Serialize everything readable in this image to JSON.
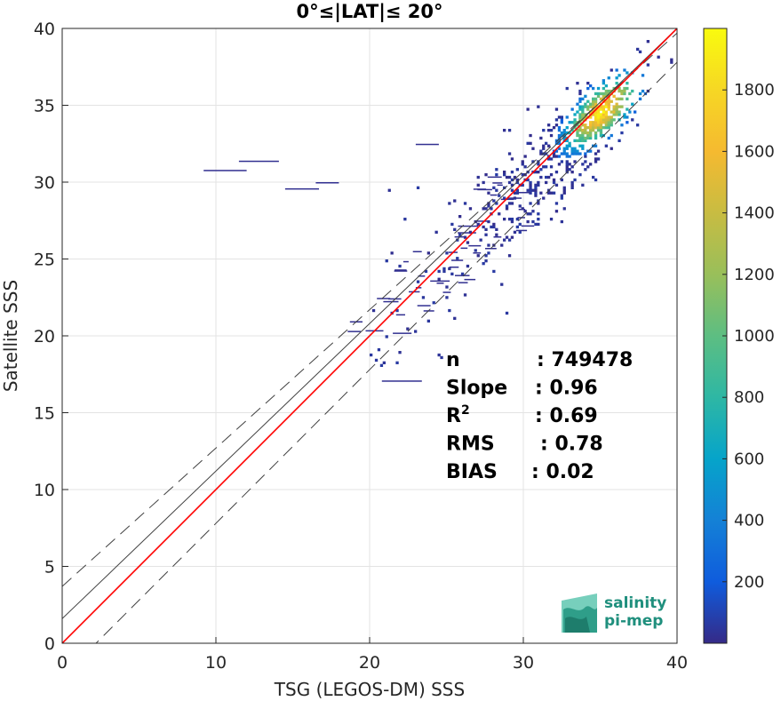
{
  "chart_data": {
    "type": "heatmap",
    "title": "0°≤|LAT|≤ 20°",
    "xlabel": "TSG (LEGOS-DM) SSS",
    "ylabel": "Satellite SSS",
    "xlim": [
      0,
      40
    ],
    "ylim": [
      0,
      40
    ],
    "xticks": [
      "0",
      "10",
      "20",
      "30",
      "40"
    ],
    "yticks": [
      "0",
      "5",
      "10",
      "15",
      "20",
      "25",
      "30",
      "35",
      "40"
    ],
    "grid": true,
    "colorbar": {
      "range": [
        0,
        2000
      ],
      "ticks": [
        "200",
        "400",
        "600",
        "800",
        "1000",
        "1200",
        "1400",
        "1600",
        "1800"
      ],
      "colormap": "parula"
    },
    "density_peak": {
      "x": 35.0,
      "y": 34.5,
      "count": 1850
    },
    "lines": {
      "one_to_one": {
        "color": "#ff0000",
        "slope": 1.0,
        "intercept": 0.0
      },
      "regression": {
        "color": "#404040",
        "slope": 0.96,
        "intercept": 1.6
      },
      "lower_bound": {
        "color": "#404040",
        "style": "dashed",
        "slope": 1.0,
        "intercept": -2.2
      },
      "upper_bound": {
        "color": "#404040",
        "style": "dashed",
        "slope": 0.9,
        "intercept": 3.7
      }
    },
    "stats": [
      {
        "label": "n",
        "value": ": 749478"
      },
      {
        "label": "Slope",
        "value": ": 0.96"
      },
      {
        "label": "R",
        "sup": "2",
        "value": ": 0.69"
      },
      {
        "label": "RMS",
        "value": ": 0.78"
      },
      {
        "label": "BIAS",
        "value": ": 0.02"
      }
    ]
  },
  "logo": {
    "line1": "salinity",
    "line2": "pi-mep"
  }
}
